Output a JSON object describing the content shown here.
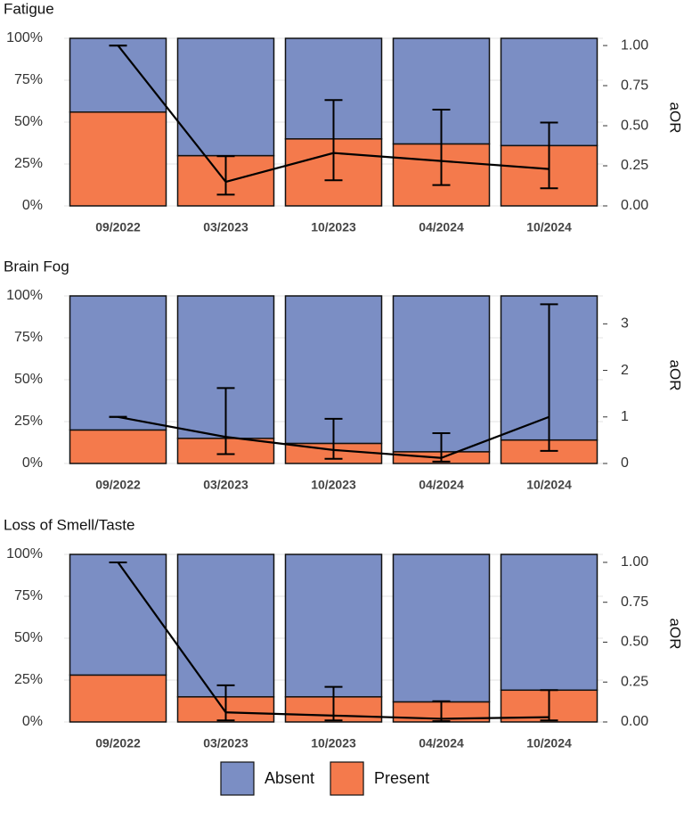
{
  "chart_data": [
    {
      "type": "bar",
      "stacked": true,
      "title": "Fatigue",
      "categories": [
        "09/2022",
        "03/2023",
        "10/2023",
        "04/2024",
        "10/2024"
      ],
      "series": [
        {
          "name": "Absent",
          "color": "#7b8ec4",
          "values": [
            44,
            70,
            60,
            63,
            64
          ]
        },
        {
          "name": "Present",
          "color": "#f47a4c",
          "values": [
            56,
            30,
            40,
            37,
            36
          ]
        },
        {
          "axis": "y2",
          "color": "#000000",
          "values": [
            1.0,
            0.15,
            0.33,
            0.28,
            0.23
          ],
          "lower": [
            1.0,
            0.07,
            0.16,
            0.13,
            0.11
          ],
          "upper": [
            1.0,
            0.31,
            0.66,
            0.6,
            0.52
          ]
        }
      ],
      "ylim": [
        0,
        100
      ],
      "yticks": [
        {
          "value": 0,
          "label": "0%"
        },
        {
          "value": 25,
          "label": "25%"
        },
        {
          "value": 50,
          "label": "50%"
        },
        {
          "value": 75,
          "label": "75%"
        },
        {
          "value": 100,
          "label": "100%"
        }
      ],
      "y2lim": [
        0,
        1.045
      ],
      "y2ticks": [
        {
          "value": 0,
          "label": "0.00"
        },
        {
          "value": 0.25,
          "label": "0.25"
        },
        {
          "value": 0.5,
          "label": "0.50"
        },
        {
          "value": 0.75,
          "label": "0.75"
        },
        {
          "value": 1,
          "label": "1.00"
        }
      ],
      "y2label": "aOR",
      "grid": true
    },
    {
      "type": "bar",
      "stacked": true,
      "title": "Brain Fog",
      "categories": [
        "09/2022",
        "03/2023",
        "10/2023",
        "04/2024",
        "10/2024"
      ],
      "series": [
        {
          "name": "Absent",
          "color": "#7b8ec4",
          "values": [
            80,
            85,
            88,
            93,
            86
          ]
        },
        {
          "name": "Present",
          "color": "#f47a4c",
          "values": [
            20,
            15,
            12,
            7,
            14
          ]
        },
        {
          "axis": "y2",
          "color": "#000000",
          "values": [
            1.0,
            0.57,
            0.29,
            0.12,
            1.0
          ],
          "lower": [
            1.0,
            0.2,
            0.1,
            0.04,
            0.27
          ],
          "upper": [
            1.0,
            1.62,
            0.96,
            0.65,
            3.42
          ]
        }
      ],
      "ylim": [
        0,
        100
      ],
      "yticks": [
        {
          "value": 0,
          "label": "0%"
        },
        {
          "value": 25,
          "label": "25%"
        },
        {
          "value": 50,
          "label": "50%"
        },
        {
          "value": 75,
          "label": "75%"
        },
        {
          "value": 100,
          "label": "100%"
        }
      ],
      "y2lim": [
        0,
        3.6
      ],
      "y2ticks": [
        0,
        1,
        2,
        3
      ],
      "y2label": "aOR",
      "grid": true
    },
    {
      "type": "bar",
      "stacked": true,
      "title": "Loss of Smell/Taste",
      "categories": [
        "09/2022",
        "03/2023",
        "10/2023",
        "04/2024",
        "10/2024"
      ],
      "series": [
        {
          "name": "Absent",
          "color": "#7b8ec4",
          "values": [
            72,
            85,
            85,
            88,
            81
          ]
        },
        {
          "name": "Present",
          "color": "#f47a4c",
          "values": [
            28,
            15,
            15,
            12,
            19
          ]
        },
        {
          "axis": "y2",
          "color": "#000000",
          "values": [
            1.0,
            0.06,
            0.04,
            0.02,
            0.03
          ],
          "lower": [
            1.0,
            0.01,
            0.01,
            0.005,
            0.01
          ],
          "upper": [
            1.0,
            0.23,
            0.22,
            0.13,
            0.2
          ]
        }
      ],
      "ylim": [
        0,
        100
      ],
      "yticks": [
        {
          "value": 0,
          "label": "0%"
        },
        {
          "value": 25,
          "label": "25%"
        },
        {
          "value": 50,
          "label": "50%"
        },
        {
          "value": 75,
          "label": "75%"
        },
        {
          "value": 100,
          "label": "100%"
        }
      ],
      "y2lim": [
        0,
        1.05
      ],
      "y2ticks": [
        {
          "value": 0,
          "label": "0.00"
        },
        {
          "value": 0.25,
          "label": "0.25"
        },
        {
          "value": 0.5,
          "label": "0.50"
        },
        {
          "value": 0.75,
          "label": "0.75"
        },
        {
          "value": 1,
          "label": "1.00"
        }
      ],
      "y2label": "aOR",
      "grid": true
    }
  ]
}
